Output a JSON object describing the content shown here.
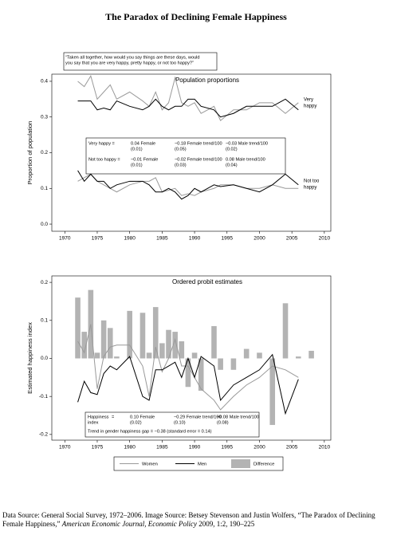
{
  "title": "The Paradox of Declining Female Happiness",
  "chart_data": [
    {
      "type": "line",
      "subtitle": [
        "“Taken all together, how would you say things are these days, would",
        "you say that you are very happy, pretty happy, or not too happy?”"
      ],
      "panel_title": "Population proportions",
      "ylabel": "Proportion of population",
      "x": [
        1972,
        1973,
        1974,
        1975,
        1976,
        1977,
        1978,
        1980,
        1982,
        1983,
        1984,
        1985,
        1986,
        1987,
        1988,
        1989,
        1990,
        1991,
        1993,
        1994,
        1996,
        1998,
        2000,
        2002,
        2004,
        2006
      ],
      "series": [
        {
          "color": "#999999",
          "values": [
            0.4,
            0.385,
            0.415,
            0.35,
            0.37,
            0.39,
            0.35,
            0.37,
            0.345,
            0.33,
            0.37,
            0.32,
            0.34,
            0.41,
            0.34,
            0.33,
            0.34,
            0.31,
            0.33,
            0.29,
            0.32,
            0.32,
            0.34,
            0.34,
            0.31,
            0.34
          ]
        },
        {
          "color": "#000000",
          "values": [
            0.345,
            0.345,
            0.345,
            0.32,
            0.325,
            0.32,
            0.345,
            0.33,
            0.32,
            0.33,
            0.35,
            0.33,
            0.32,
            0.33,
            0.33,
            0.35,
            0.35,
            0.33,
            0.32,
            0.3,
            0.31,
            0.33,
            0.33,
            0.33,
            0.35,
            0.32
          ]
        },
        {
          "color": "#999999",
          "values": [
            0.12,
            0.13,
            0.14,
            0.12,
            0.11,
            0.1,
            0.09,
            0.11,
            0.12,
            0.12,
            0.13,
            0.09,
            0.095,
            0.1,
            0.08,
            0.085,
            0.08,
            0.09,
            0.1,
            0.11,
            0.11,
            0.1,
            0.1,
            0.11,
            0.1,
            0.1
          ]
        },
        {
          "color": "#000000",
          "values": [
            0.15,
            0.12,
            0.14,
            0.12,
            0.12,
            0.1,
            0.11,
            0.12,
            0.12,
            0.11,
            0.09,
            0.09,
            0.1,
            0.09,
            0.07,
            0.08,
            0.1,
            0.09,
            0.11,
            0.105,
            0.11,
            0.1,
            0.09,
            0.11,
            0.14,
            0.11
          ]
        }
      ],
      "end_labels": [
        [
          "Very",
          "happy"
        ],
        [
          "Not too",
          "happy"
        ]
      ],
      "table": [
        [
          [
            "Very happy ="
          ],
          [
            "0.04 Female",
            "(0.01)"
          ],
          [
            "−0.18 Female trend/100",
            "(0.05)"
          ],
          [
            "−0.03 Male trend/100",
            "(0.02)"
          ]
        ],
        [
          [
            "Not too happy ="
          ],
          [
            "−0.01 Female",
            "(0.01)"
          ],
          [
            "−0.02 Female trend/100",
            "(0.03)"
          ],
          [
            "0.08 Male trend/100",
            "(0.04)"
          ]
        ]
      ],
      "xlim": [
        1968,
        2011
      ],
      "xticks": [
        1970,
        1975,
        1980,
        1985,
        1990,
        1995,
        2000,
        2005,
        2010
      ],
      "ylim": [
        -0.02,
        0.42
      ],
      "yticks": [
        {
          "value": 0,
          "label": "0.0"
        },
        0.1,
        0.2,
        0.3,
        0.4
      ]
    },
    {
      "type": "combo",
      "panel_title": "Ordered probit estimates",
      "ylabel": "Estimated happiness index",
      "x": [
        1972,
        1973,
        1974,
        1975,
        1976,
        1977,
        1978,
        1980,
        1982,
        1983,
        1984,
        1985,
        1986,
        1987,
        1988,
        1989,
        1990,
        1991,
        1993,
        1994,
        1996,
        1998,
        2000,
        2002,
        2004,
        2006,
        2008
      ],
      "series": [
        {
          "name": "Women",
          "type": "line",
          "color": "#999999",
          "values": [
            0.045,
            0.015,
            0.09,
            -0.08,
            0.005,
            0.03,
            0.035,
            0.035,
            -0.02,
            -0.1,
            0.03,
            -0.035,
            0.0,
            0.05,
            -0.02,
            -0.02,
            -0.05,
            -0.08,
            -0.11,
            -0.135,
            -0.1,
            -0.07,
            -0.05,
            -0.02,
            -0.03,
            -0.05,
            null
          ]
        },
        {
          "name": "Men",
          "type": "line",
          "color": "#000000",
          "values": [
            -0.115,
            -0.06,
            -0.09,
            -0.095,
            -0.04,
            -0.02,
            -0.03,
            0.005,
            -0.1,
            -0.11,
            -0.03,
            -0.03,
            -0.02,
            -0.01,
            -0.05,
            0.0,
            -0.05,
            0.005,
            -0.02,
            -0.11,
            -0.07,
            -0.05,
            -0.03,
            0.01,
            -0.145,
            -0.055,
            null
          ]
        },
        {
          "name": "Difference",
          "type": "bar",
          "color": "#b3b3b3",
          "values": [
            0.16,
            0.07,
            0.18,
            0.015,
            0.1,
            0.08,
            0.005,
            0.125,
            0.12,
            0.015,
            0.135,
            0.04,
            0.075,
            0.07,
            0.045,
            -0.075,
            0.015,
            -0.085,
            0.085,
            -0.03,
            -0.03,
            0.025,
            0.015,
            -0.175,
            0.145,
            0.005,
            0.02
          ]
        }
      ],
      "table": [
        [
          [
            "Happiness",
            "index"
          ],
          [
            "="
          ],
          [
            "0.10 Female",
            "(0.02)"
          ],
          [
            "−0.29 Female trend/100",
            "(0.10)"
          ],
          [
            "+0.08 Male trend/100",
            "(0.08)"
          ]
        ]
      ],
      "note": "Trend in gender happiness gap = −0.38 (standard error = 0.14)",
      "xlim": [
        1968,
        2011
      ],
      "xticks": [
        1970,
        1975,
        1980,
        1985,
        1990,
        1995,
        2000,
        2005,
        2010
      ],
      "ylim": [
        -0.215,
        0.217
      ],
      "yticks": [
        -0.2,
        -0.1,
        {
          "value": 0,
          "label": "0.0"
        },
        0.1,
        0.2
      ]
    }
  ],
  "footer": [
    "Data Source: General Social Survey, 1972–2006. Image Source: Betsey Stevenson and Justin Wolfers, “The Paradox of Declining Female Happiness,” ",
    "American Economic Journal, Economic Policy",
    " 2009, 1:2, 190–225"
  ]
}
